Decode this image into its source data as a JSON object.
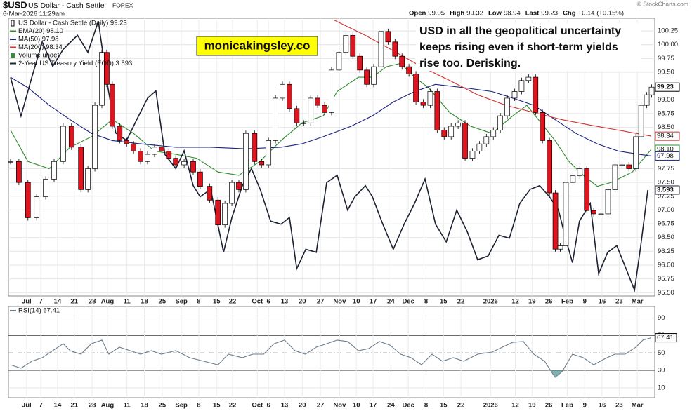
{
  "header": {
    "symbol": "$USD",
    "name": "US Dollar - Cash Settle",
    "exchange": "FOREX",
    "date": "6-Mar-2026 11:29am",
    "copyright": "© StockCharts.com",
    "quote": [
      {
        "label": "Open",
        "value": 99.05
      },
      {
        "label": "High",
        "value": 99.32
      },
      {
        "label": "Low",
        "value": 98.94
      },
      {
        "label": "Last",
        "value": 99.23
      },
      {
        "label": "Chg",
        "value": "+0.14 (+0.15%)"
      }
    ]
  },
  "chart_data": [
    {
      "type": "candlestick",
      "grid": true,
      "price": {
        "name": "US Dollar - Cash Settle (Daily) 99.23",
        "color_up": "#ffffff",
        "color_down": "#e0141e",
        "end_label": 99.23,
        "x": [
          0.6,
          3.0,
          5.6,
          8.1,
          10.7,
          13.1,
          15.7,
          18.1,
          20.8,
          22.8,
          24.8,
          26.8,
          28.2,
          29.8,
          31.9,
          33.9,
          35.9,
          37.9,
          39.9,
          41.9,
          44.0,
          46.0,
          48.0,
          50.4,
          53.0,
          55.0,
          57.7,
          60.1,
          62.1,
          64.1,
          66.1,
          68.1,
          70.6,
          72.6,
          74.6,
          76.6,
          78.6,
          80.6,
          82.7,
          84.7,
          86.7,
          88.7,
          90.7,
          92.7,
          94.8,
          96.8,
          98.8,
          100.8,
          102.8,
          104.8,
          106.9,
          108.9,
          110.9,
          112.9,
          114.9,
          116.9,
          119.0,
          121.0,
          123.0,
          125.0,
          127.0,
          129.0,
          131.0,
          133.1,
          135.1,
          137.1,
          139.1,
          141.1,
          143.1,
          145.2,
          147.2,
          149.2,
          151.2,
          153.2,
          155.2,
          156.9,
          158.3,
          159.9,
          161.9,
          163.9,
          165.9,
          167.9,
          170.0,
          172.0,
          174.0,
          176.0,
          178.0,
          180.0,
          181.5,
          183.1,
          184.5
        ],
        "values": [
          97.88,
          97.5,
          96.86,
          97.24,
          97.56,
          97.88,
          98.52,
          98.14,
          97.37,
          97.75,
          98.9,
          99.86,
          99.28,
          98.52,
          98.26,
          98.2,
          98.07,
          97.88,
          98.01,
          98.14,
          98.07,
          97.94,
          97.82,
          97.88,
          97.69,
          97.43,
          97.18,
          96.73,
          97.12,
          97.5,
          97.37,
          98.39,
          97.88,
          97.82,
          98.26,
          99.03,
          99.28,
          98.84,
          98.58,
          98.58,
          99.03,
          98.9,
          98.77,
          99.54,
          99.86,
          100.17,
          99.79,
          99.54,
          99.28,
          99.6,
          100.24,
          100.05,
          99.79,
          99.6,
          99.47,
          98.96,
          98.9,
          99.15,
          98.45,
          98.33,
          98.52,
          98.58,
          97.94,
          98.07,
          98.2,
          98.33,
          98.45,
          98.71,
          99.03,
          99.15,
          99.35,
          99.41,
          98.77,
          98.26,
          97.31,
          96.29,
          96.35,
          97.5,
          97.62,
          97.75,
          96.99,
          96.93,
          96.93,
          97.37,
          97.82,
          97.82,
          97.75,
          98.33,
          98.9,
          99.09,
          99.23
        ]
      },
      "series": [
        {
          "name": "EMA(20) 98.10",
          "color": "#2e8b2e",
          "end_label": {
            "value": 98.1,
            "label": "98.10"
          },
          "x": [
            0.6,
            5.6,
            11.7,
            17.7,
            23.8,
            29.8,
            35.9,
            41.9,
            48.0,
            54.0,
            60.1,
            66.1,
            72.1,
            78.2,
            84.2,
            90.3,
            94.3,
            100.4,
            104.4,
            108.4,
            112.5,
            116.5,
            120.5,
            126.6,
            132.6,
            138.7,
            144.7,
            148.7,
            152.8,
            156.8,
            160.8,
            164.9,
            168.9,
            172.9,
            179.0,
            184.4
          ],
          "values": [
            98.45,
            97.88,
            97.75,
            98.14,
            98.33,
            98.64,
            98.39,
            98.07,
            98.01,
            97.94,
            97.69,
            97.63,
            97.88,
            98.26,
            98.58,
            98.71,
            99.15,
            99.41,
            99.41,
            99.6,
            99.66,
            99.41,
            99.22,
            98.77,
            98.52,
            98.39,
            98.71,
            98.9,
            98.58,
            98.26,
            97.88,
            97.63,
            97.43,
            97.5,
            97.69,
            98.1
          ]
        },
        {
          "name": "MA(50) 97.98",
          "color": "#1a237e",
          "end_label": 97.98,
          "x": [
            0.6,
            5.6,
            11.7,
            17.7,
            23.8,
            29.8,
            37.9,
            48.0,
            58.0,
            68.1,
            78.2,
            84.2,
            90.3,
            98.3,
            104.4,
            110.4,
            116.5,
            122.5,
            130.6,
            138.7,
            144.7,
            150.7,
            156.8,
            162.8,
            168.9,
            174.9,
            181.0,
            184.4
          ],
          "values": [
            99.41,
            99.22,
            98.9,
            98.64,
            98.39,
            98.26,
            98.2,
            98.14,
            98.14,
            98.11,
            98.14,
            98.2,
            98.33,
            98.52,
            98.71,
            98.96,
            99.15,
            99.28,
            99.22,
            99.15,
            99.03,
            98.9,
            98.64,
            98.39,
            98.2,
            98.07,
            98.01,
            97.98
          ]
        },
        {
          "name": "MA(200) 98.34",
          "color": "#d32f2f",
          "end_label": 98.34,
          "x": [
            93.3,
            102.4,
            110.4,
            118.5,
            126.6,
            134.6,
            142.7,
            150.7,
            158.8,
            166.9,
            174.9,
            184.4
          ],
          "values": [
            100.45,
            100.17,
            99.89,
            99.6,
            99.35,
            99.09,
            98.9,
            98.77,
            98.64,
            98.54,
            98.45,
            98.34
          ]
        },
        {
          "name": "2-Year US Treasury Yield (EOD) 3.593",
          "color": "#1c2233",
          "axis": "y2",
          "end_label": 3.593,
          "x": [
            0.6,
            3.6,
            6.7,
            9.7,
            12.7,
            15.7,
            19.8,
            22.8,
            25.8,
            28.2,
            30.8,
            33.9,
            36.9,
            39.9,
            42.3,
            44.9,
            48.0,
            50.4,
            53.0,
            55.0,
            58.0,
            61.7,
            64.1,
            67.1,
            69.7,
            72.2,
            75.2,
            78.2,
            80.6,
            82.7,
            85.3,
            88.3,
            91.3,
            94.3,
            97.3,
            99.4,
            102.4,
            104.4,
            107.4,
            110.4,
            113.5,
            116.5,
            119.5,
            122.5,
            125.6,
            128.6,
            131.6,
            134.6,
            137.6,
            140.7,
            143.7,
            146.7,
            149.7,
            152.4,
            155.2,
            157.8,
            159.8,
            161.8,
            163.8,
            166.9,
            169.3,
            171.9,
            174.5,
            176.9,
            179.6,
            181.4,
            183.4
          ],
          "values": [
            3.745,
            3.693,
            3.745,
            3.793,
            3.76,
            3.783,
            3.802,
            3.779,
            3.821,
            3.741,
            3.67,
            3.66,
            3.689,
            3.717,
            3.727,
            3.641,
            3.622,
            3.646,
            3.599,
            3.584,
            3.594,
            3.509,
            3.556,
            3.599,
            3.622,
            3.594,
            3.551,
            3.547,
            3.556,
            3.487,
            3.513,
            3.509,
            3.603,
            3.613,
            3.566,
            3.584,
            3.599,
            3.584,
            3.547,
            3.513,
            3.547,
            3.575,
            3.608,
            3.547,
            3.523,
            3.566,
            3.537,
            3.499,
            3.504,
            3.532,
            3.528,
            3.575,
            3.594,
            3.599,
            3.584,
            3.566,
            3.528,
            3.495,
            3.551,
            3.575,
            3.48,
            3.509,
            3.518,
            3.49,
            3.458,
            3.518,
            3.593
          ]
        }
      ],
      "volume_legend": {
        "name": "Volume undef",
        "color": "#3c8c3c"
      },
      "annotations": {
        "badge": "monicakingsley.co",
        "note": [
          "USD in all the geopolitical uncertainty",
          "keeps rising even if short-term yields",
          "rise too. Derisking."
        ]
      },
      "xlim": [
        0,
        185
      ],
      "ylim": [
        95.44,
        100.48
      ],
      "y2lim": [
        3.45,
        3.825
      ],
      "yticks": [
        100.25,
        {
          "value": 100,
          "label": "100.00"
        },
        99.75,
        {
          "value": 99.5,
          "label": "99.50"
        },
        {
          "value": 99,
          "label": "99.00"
        },
        98.75,
        {
          "value": 98.5,
          "label": "98.50"
        },
        97.75,
        {
          "value": 97.5,
          "label": "97.50"
        },
        97.25,
        {
          "value": 97,
          "label": "97.00"
        },
        96.75,
        {
          "value": 96.5,
          "label": "96.50"
        },
        96.25,
        {
          "value": 96,
          "label": "96.00"
        },
        95.75,
        {
          "value": 95.5,
          "label": "95.50"
        }
      ],
      "xticks": [
        {
          "value": 5.2,
          "label": "Jul"
        },
        {
          "value": 9.3,
          "label": "7"
        },
        {
          "value": 14.1,
          "label": "14"
        },
        {
          "value": 18.9,
          "label": "21"
        },
        {
          "value": 24.0,
          "label": "28"
        },
        {
          "value": 28.4,
          "label": "Aug"
        },
        {
          "value": 34.0,
          "label": "11"
        },
        {
          "value": 39.0,
          "label": "18"
        },
        {
          "value": 44.1,
          "label": "25"
        },
        {
          "value": 49.6,
          "label": "Sep"
        },
        {
          "value": 54.6,
          "label": "8"
        },
        {
          "value": 59.7,
          "label": "15"
        },
        {
          "value": 64.3,
          "label": "22"
        },
        {
          "value": 71.4,
          "label": "Oct"
        },
        {
          "value": 74.6,
          "label": "6"
        },
        {
          "value": 79.2,
          "label": "13"
        },
        {
          "value": 84.3,
          "label": "20"
        },
        {
          "value": 89.5,
          "label": "27"
        },
        {
          "value": 95.0,
          "label": "Nov"
        },
        {
          "value": 99.8,
          "label": "10"
        },
        {
          "value": 104.6,
          "label": "17"
        },
        {
          "value": 109.7,
          "label": "24"
        },
        {
          "value": 114.7,
          "label": "Dec"
        },
        {
          "value": 119.8,
          "label": "8"
        },
        {
          "value": 124.8,
          "label": "15"
        },
        {
          "value": 129.8,
          "label": "22"
        },
        {
          "value": 138.3,
          "label": "2026"
        },
        {
          "value": 145.4,
          "label": "12"
        },
        {
          "value": 150.2,
          "label": "19"
        },
        {
          "value": 155.0,
          "label": "26"
        },
        {
          "value": 160.3,
          "label": "Feb"
        },
        {
          "value": 165.3,
          "label": "9"
        },
        {
          "value": 170.3,
          "label": "16"
        },
        {
          "value": 175.2,
          "label": "23"
        },
        {
          "value": 180.4,
          "label": "Mar"
        }
      ]
    },
    {
      "type": "line",
      "title": "RSI(14) 67.41",
      "color": "#6b7d8c",
      "end_label": 67.41,
      "overbought": 70,
      "oversold": 30,
      "midline": 50,
      "x": [
        0.6,
        3.6,
        6.7,
        9.7,
        12.7,
        15.7,
        17.7,
        20.8,
        23.8,
        26.8,
        28.8,
        31.8,
        34.9,
        37.9,
        40.9,
        43.9,
        48.0,
        52.0,
        56.0,
        60.1,
        63.1,
        67.1,
        70.1,
        73.2,
        76.2,
        79.2,
        82.2,
        85.2,
        88.3,
        91.3,
        94.3,
        97.3,
        100.4,
        103.4,
        106.4,
        109.4,
        112.5,
        115.5,
        118.5,
        121.5,
        124.5,
        127.6,
        130.6,
        134.6,
        138.7,
        141.7,
        144.7,
        147.7,
        150.7,
        153.8,
        156.8,
        158.8,
        161.8,
        164.9,
        167.9,
        170.9,
        173.9,
        176.9,
        180.0,
        182.0,
        184.4
      ],
      "values": [
        36.5,
        32.5,
        40.6,
        44.6,
        52.6,
        60.6,
        52.6,
        48.6,
        60.6,
        64.7,
        48.6,
        56.6,
        52.6,
        48.6,
        52.6,
        48.6,
        52.6,
        44.6,
        40.6,
        36.5,
        48.6,
        44.6,
        48.6,
        48.6,
        60.6,
        64.7,
        52.6,
        48.6,
        56.6,
        60.6,
        64.7,
        63.1,
        52.6,
        55.0,
        63.1,
        59.0,
        48.6,
        44.6,
        36.5,
        48.6,
        40.6,
        44.6,
        40.6,
        48.6,
        51.0,
        56.6,
        62.2,
        63.1,
        48.6,
        40.6,
        22.1,
        28.5,
        48.6,
        44.6,
        36.5,
        43.0,
        48.6,
        48.6,
        56.6,
        64.7,
        67.41
      ],
      "xlim": [
        0,
        185
      ],
      "ylim": [
        0,
        100
      ],
      "yticks": [
        90,
        70,
        50,
        30,
        10
      ],
      "xticks": [
        {
          "value": 5.2,
          "label": "Jul"
        },
        {
          "value": 9.3,
          "label": "7"
        },
        {
          "value": 14.1,
          "label": "14"
        },
        {
          "value": 18.9,
          "label": "21"
        },
        {
          "value": 24.0,
          "label": "28"
        },
        {
          "value": 28.4,
          "label": "Aug"
        },
        {
          "value": 34.0,
          "label": "11"
        },
        {
          "value": 39.0,
          "label": "18"
        },
        {
          "value": 44.1,
          "label": "25"
        },
        {
          "value": 49.6,
          "label": "Sep"
        },
        {
          "value": 54.6,
          "label": "8"
        },
        {
          "value": 59.7,
          "label": "15"
        },
        {
          "value": 64.3,
          "label": "22"
        },
        {
          "value": 71.4,
          "label": "Oct"
        },
        {
          "value": 74.6,
          "label": "6"
        },
        {
          "value": 79.2,
          "label": "13"
        },
        {
          "value": 84.3,
          "label": "20"
        },
        {
          "value": 89.5,
          "label": "27"
        },
        {
          "value": 95.0,
          "label": "Nov"
        },
        {
          "value": 99.8,
          "label": "10"
        },
        {
          "value": 104.6,
          "label": "17"
        },
        {
          "value": 109.7,
          "label": "24"
        },
        {
          "value": 114.7,
          "label": "Dec"
        },
        {
          "value": 119.8,
          "label": "8"
        },
        {
          "value": 124.8,
          "label": "15"
        },
        {
          "value": 129.8,
          "label": "22"
        },
        {
          "value": 138.3,
          "label": "2026"
        },
        {
          "value": 145.4,
          "label": "12"
        },
        {
          "value": 150.2,
          "label": "19"
        },
        {
          "value": 155.0,
          "label": "26"
        },
        {
          "value": 160.3,
          "label": "Feb"
        },
        {
          "value": 165.3,
          "label": "9"
        },
        {
          "value": 170.3,
          "label": "16"
        },
        {
          "value": 175.2,
          "label": "23"
        },
        {
          "value": 180.4,
          "label": "Mar"
        }
      ]
    }
  ]
}
